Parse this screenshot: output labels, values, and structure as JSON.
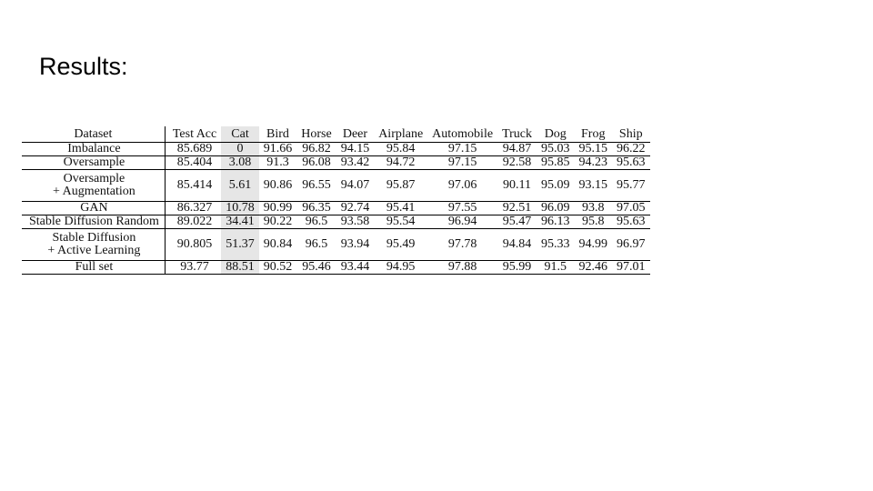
{
  "slide": {
    "title": "Results:"
  },
  "table": {
    "headers": [
      "Dataset",
      "Test Acc",
      "Cat",
      "Bird",
      "Horse",
      "Deer",
      "Airplane",
      "Automobile",
      "Truck",
      "Dog",
      "Frog",
      "Ship"
    ],
    "highlight_color": "#e6e6e6",
    "rows": [
      {
        "dataset": [
          "Imbalance"
        ],
        "values": [
          "85.689",
          "0",
          "91.66",
          "96.82",
          "94.15",
          "95.84",
          "97.15",
          "94.87",
          "95.03",
          "95.15",
          "96.22"
        ]
      },
      {
        "dataset": [
          "Oversample"
        ],
        "values": [
          "85.404",
          "3.08",
          "91.3",
          "96.08",
          "93.42",
          "94.72",
          "97.15",
          "92.58",
          "95.85",
          "94.23",
          "95.63"
        ]
      },
      {
        "dataset": [
          "Oversample",
          "+ Augmentation"
        ],
        "values": [
          "85.414",
          "5.61",
          "90.86",
          "96.55",
          "94.07",
          "95.87",
          "97.06",
          "90.11",
          "95.09",
          "93.15",
          "95.77"
        ]
      },
      {
        "dataset": [
          "GAN"
        ],
        "values": [
          "86.327",
          "10.78",
          "90.99",
          "96.35",
          "92.74",
          "95.41",
          "97.55",
          "92.51",
          "96.09",
          "93.8",
          "97.05"
        ]
      },
      {
        "dataset": [
          "Stable Diffusion Random"
        ],
        "values": [
          "89.022",
          "34.41",
          "90.22",
          "96.5",
          "93.58",
          "95.54",
          "96.94",
          "95.47",
          "96.13",
          "95.8",
          "95.63"
        ]
      },
      {
        "dataset": [
          "Stable Diffusion",
          "+ Active Learning"
        ],
        "values": [
          "90.805",
          "51.37",
          "90.84",
          "96.5",
          "93.94",
          "95.49",
          "97.78",
          "94.84",
          "95.33",
          "94.99",
          "96.97"
        ]
      },
      {
        "dataset": [
          "Full set"
        ],
        "values": [
          "93.77",
          "88.51",
          "90.52",
          "95.46",
          "93.44",
          "94.95",
          "97.88",
          "95.99",
          "91.5",
          "92.46",
          "97.01"
        ]
      }
    ]
  }
}
